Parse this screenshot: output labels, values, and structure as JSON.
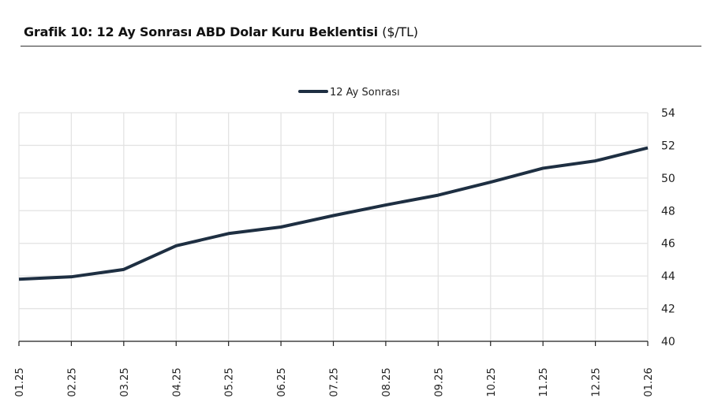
{
  "header": {
    "title_bold": "Grafik 10: 12 Ay Sonrası ABD Dolar Kuru Beklentisi",
    "title_unit": "($/TL)"
  },
  "colors": {
    "line": "#1e2f42",
    "grid": "#e3e3e3",
    "axis": "#222222"
  },
  "chart_data": {
    "type": "line",
    "title": "Grafik 10: 12 Ay Sonrası ABD Dolar Kuru Beklentisi ($/TL)",
    "xlabel": "",
    "ylabel": "",
    "categories": [
      "01.25",
      "02.25",
      "03.25",
      "04.25",
      "05.25",
      "06.25",
      "07.25",
      "08.25",
      "09.25",
      "10.25",
      "11.25",
      "12.25",
      "01.26"
    ],
    "series": [
      {
        "name": "12 Ay Sonrası",
        "values": [
          43.8,
          43.95,
          44.4,
          45.85,
          46.6,
          47.0,
          47.7,
          48.35,
          48.95,
          49.75,
          50.6,
          51.05,
          51.85
        ]
      }
    ],
    "ylim": [
      40,
      54
    ],
    "yticks": [
      40,
      42,
      44,
      46,
      48,
      50,
      52,
      54
    ],
    "y_axis_position": "right",
    "grid": true,
    "legend_position": "top-center"
  }
}
